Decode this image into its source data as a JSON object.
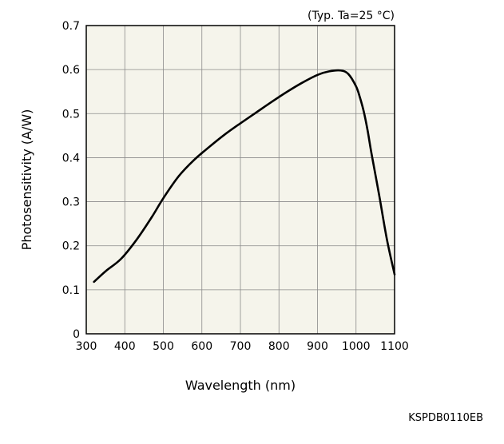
{
  "chart_data": {
    "type": "line",
    "title": "",
    "annotation": "(Typ. Ta=25 °C)",
    "xlabel": "Wavelength (nm)",
    "ylabel": "Photosensitivity (A/W)",
    "xlim": [
      300,
      1100
    ],
    "ylim": [
      0,
      0.7
    ],
    "x_ticks": [
      300,
      400,
      500,
      600,
      700,
      800,
      900,
      1000,
      1100
    ],
    "x_tick_labels": [
      "300",
      "400",
      "500",
      "600",
      "700",
      "800",
      "900",
      "1000",
      "1100"
    ],
    "y_ticks": [
      0,
      0.1,
      0.2,
      0.3,
      0.4,
      0.5,
      0.6,
      0.7
    ],
    "y_tick_labels": [
      "0",
      "0.1",
      "0.2",
      "0.3",
      "0.4",
      "0.5",
      "0.6",
      "0.7"
    ],
    "grid": true,
    "legend": "none",
    "series": [
      {
        "color": "#000000",
        "x": [
          320,
          350,
          390,
          430,
          470,
          500,
          540,
          580,
          620,
          660,
          700,
          740,
          780,
          820,
          860,
          900,
          930,
          960,
          980,
          1000,
          1010,
          1020,
          1030,
          1040,
          1060,
          1080,
          1100
        ],
        "y": [
          0.118,
          0.142,
          0.17,
          0.213,
          0.265,
          0.308,
          0.358,
          0.395,
          0.425,
          0.453,
          0.478,
          0.502,
          0.526,
          0.549,
          0.57,
          0.588,
          0.596,
          0.598,
          0.59,
          0.562,
          0.537,
          0.505,
          0.462,
          0.41,
          0.315,
          0.215,
          0.135
        ]
      }
    ]
  },
  "footer": {
    "code": "KSPDB0110EB"
  }
}
